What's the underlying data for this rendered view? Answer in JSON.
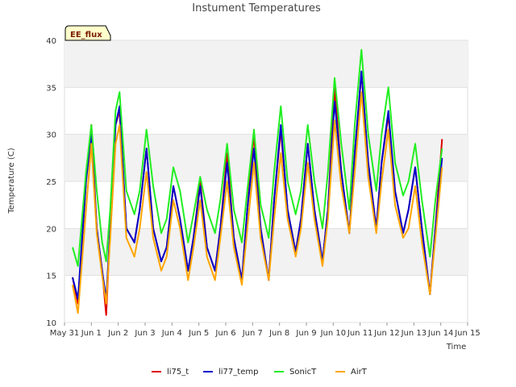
{
  "chart_data": {
    "type": "line",
    "title": "Instument Temperatures",
    "xlabel": "Time",
    "ylabel": "Temperature (C)",
    "badge": "EE_flux",
    "xlim": [
      0,
      15
    ],
    "ylim": [
      10,
      40
    ],
    "x_ticks": [
      {
        "v": 0,
        "label": "May 31"
      },
      {
        "v": 1,
        "label": "Jun 1"
      },
      {
        "v": 2,
        "label": "Jun 2"
      },
      {
        "v": 3,
        "label": "Jun 3"
      },
      {
        "v": 4,
        "label": "Jun 4"
      },
      {
        "v": 5,
        "label": "Jun 5"
      },
      {
        "v": 6,
        "label": "Jun 6"
      },
      {
        "v": 7,
        "label": "Jun 7"
      },
      {
        "v": 8,
        "label": "Jun 8"
      },
      {
        "v": 9,
        "label": "Jun 9"
      },
      {
        "v": 10,
        "label": "Jun 10"
      },
      {
        "v": 11,
        "label": "Jun 11"
      },
      {
        "v": 12,
        "label": "Jun 12"
      },
      {
        "v": 13,
        "label": "Jun 13"
      },
      {
        "v": 14,
        "label": "Jun 14"
      },
      {
        "v": 15,
        "label": "Jun 15"
      }
    ],
    "y_ticks": [
      10,
      15,
      20,
      25,
      30,
      35,
      40
    ],
    "grid": true,
    "legend_position": "bottom",
    "series": [
      {
        "name": "li75_t",
        "color": "#e00000",
        "x": [
          0.3,
          0.5,
          0.8,
          1.0,
          1.2,
          1.4,
          1.55,
          1.7,
          1.9,
          2.05,
          2.3,
          2.6,
          2.8,
          3.05,
          3.3,
          3.6,
          3.8,
          4.05,
          4.3,
          4.6,
          4.8,
          5.05,
          5.3,
          5.6,
          5.8,
          6.05,
          6.3,
          6.6,
          6.8,
          7.05,
          7.3,
          7.6,
          7.8,
          8.05,
          8.3,
          8.6,
          8.8,
          9.05,
          9.3,
          9.6,
          9.8,
          10.05,
          10.3,
          10.6,
          10.8,
          11.05,
          11.3,
          11.6,
          11.8,
          12.05,
          12.3,
          12.6,
          12.8,
          13.05,
          13.3,
          13.6,
          13.8,
          14.05
        ],
        "y": [
          14.8,
          12.0,
          25.0,
          31.0,
          20.0,
          15.5,
          10.8,
          20.0,
          31.0,
          32.5,
          20.0,
          18.5,
          22.0,
          28.5,
          20.0,
          16.5,
          18.0,
          24.5,
          21.0,
          15.5,
          19.0,
          25.0,
          18.0,
          15.5,
          20.0,
          28.0,
          19.0,
          14.5,
          22.0,
          30.0,
          20.0,
          14.5,
          23.0,
          30.5,
          22.0,
          17.5,
          21.0,
          29.0,
          22.0,
          16.5,
          22.0,
          35.0,
          26.0,
          19.5,
          28.0,
          36.5,
          27.0,
          20.0,
          27.0,
          32.0,
          24.0,
          19.5,
          22.0,
          26.5,
          20.0,
          13.0,
          20.0,
          29.5
        ]
      },
      {
        "name": "li77_temp",
        "color": "#0000cc",
        "x": [
          0.3,
          0.5,
          0.8,
          1.0,
          1.2,
          1.4,
          1.55,
          1.7,
          1.9,
          2.05,
          2.3,
          2.6,
          2.8,
          3.05,
          3.3,
          3.6,
          3.8,
          4.05,
          4.3,
          4.6,
          4.8,
          5.05,
          5.3,
          5.6,
          5.8,
          6.05,
          6.3,
          6.6,
          6.8,
          7.05,
          7.3,
          7.6,
          7.8,
          8.05,
          8.3,
          8.6,
          8.8,
          9.05,
          9.3,
          9.6,
          9.8,
          10.05,
          10.3,
          10.6,
          10.8,
          11.05,
          11.3,
          11.6,
          11.8,
          12.05,
          12.3,
          12.6,
          12.8,
          13.05,
          13.3,
          13.6,
          13.8,
          14.05
        ],
        "y": [
          14.8,
          12.5,
          25.0,
          30.0,
          20.0,
          15.5,
          12.5,
          20.0,
          31.0,
          33.0,
          20.0,
          18.5,
          22.0,
          28.5,
          20.0,
          16.5,
          18.0,
          24.5,
          21.0,
          15.5,
          19.0,
          24.5,
          18.0,
          15.5,
          20.0,
          27.0,
          19.0,
          14.5,
          22.0,
          28.5,
          20.0,
          14.5,
          23.0,
          31.0,
          22.0,
          17.5,
          21.0,
          29.0,
          22.0,
          16.5,
          22.0,
          33.5,
          26.0,
          19.5,
          28.0,
          36.7,
          27.0,
          20.0,
          27.0,
          32.5,
          24.0,
          19.5,
          22.0,
          26.5,
          20.0,
          13.0,
          20.0,
          27.5
        ]
      },
      {
        "name": "SonicT",
        "color": "#22ee22",
        "x": [
          0.3,
          0.5,
          0.8,
          1.0,
          1.2,
          1.4,
          1.55,
          1.7,
          1.9,
          2.05,
          2.3,
          2.6,
          2.8,
          3.05,
          3.3,
          3.6,
          3.8,
          4.05,
          4.3,
          4.6,
          4.8,
          5.05,
          5.3,
          5.6,
          5.8,
          6.05,
          6.3,
          6.6,
          6.8,
          7.05,
          7.3,
          7.6,
          7.8,
          8.05,
          8.3,
          8.6,
          8.8,
          9.05,
          9.3,
          9.6,
          9.8,
          10.05,
          10.3,
          10.6,
          10.8,
          11.05,
          11.3,
          11.6,
          11.8,
          12.05,
          12.3,
          12.6,
          12.8,
          13.05,
          13.3,
          13.6,
          13.8,
          14.05
        ],
        "y": [
          18.0,
          16.0,
          26.0,
          31.0,
          24.0,
          18.5,
          16.5,
          22.0,
          32.5,
          34.5,
          24.0,
          21.5,
          24.0,
          30.5,
          24.5,
          19.5,
          21.0,
          26.5,
          24.0,
          18.5,
          21.5,
          25.5,
          22.0,
          19.5,
          23.0,
          29.0,
          22.0,
          18.5,
          24.0,
          30.5,
          22.5,
          19.0,
          26.0,
          33.0,
          25.0,
          21.5,
          24.0,
          31.0,
          25.0,
          20.0,
          26.0,
          36.0,
          29.0,
          22.0,
          31.0,
          39.0,
          30.0,
          24.0,
          30.0,
          35.0,
          27.0,
          23.5,
          25.0,
          29.0,
          23.0,
          17.0,
          23.0,
          28.5
        ]
      },
      {
        "name": "AirT",
        "color": "#ffa500",
        "x": [
          0.3,
          0.5,
          0.8,
          1.0,
          1.2,
          1.4,
          1.55,
          1.7,
          1.9,
          2.05,
          2.3,
          2.6,
          2.8,
          3.05,
          3.3,
          3.6,
          3.8,
          4.05,
          4.3,
          4.6,
          4.8,
          5.05,
          5.3,
          5.6,
          5.8,
          6.05,
          6.3,
          6.6,
          6.8,
          7.05,
          7.3,
          7.6,
          7.8,
          8.05,
          8.3,
          8.6,
          8.8,
          9.05,
          9.3,
          9.6,
          9.8,
          10.05,
          10.3,
          10.6,
          10.8,
          11.05,
          11.3,
          11.6,
          11.8,
          12.05,
          12.3,
          12.6,
          12.8,
          13.05,
          13.3,
          13.6,
          13.8,
          14.05
        ],
        "y": [
          14.0,
          11.0,
          22.0,
          29.0,
          19.5,
          15.0,
          12.0,
          19.0,
          29.0,
          31.0,
          19.0,
          17.0,
          20.0,
          26.0,
          19.0,
          15.5,
          17.0,
          23.0,
          20.0,
          14.5,
          18.0,
          23.0,
          17.0,
          14.5,
          19.0,
          25.0,
          18.0,
          14.0,
          20.0,
          27.0,
          19.0,
          14.5,
          21.0,
          28.0,
          21.0,
          17.0,
          20.0,
          27.0,
          21.0,
          16.0,
          21.0,
          31.5,
          24.5,
          19.5,
          26.0,
          34.5,
          25.5,
          19.5,
          25.0,
          30.5,
          22.5,
          19.0,
          20.0,
          24.5,
          18.5,
          13.0,
          19.0,
          26.5
        ]
      }
    ]
  }
}
